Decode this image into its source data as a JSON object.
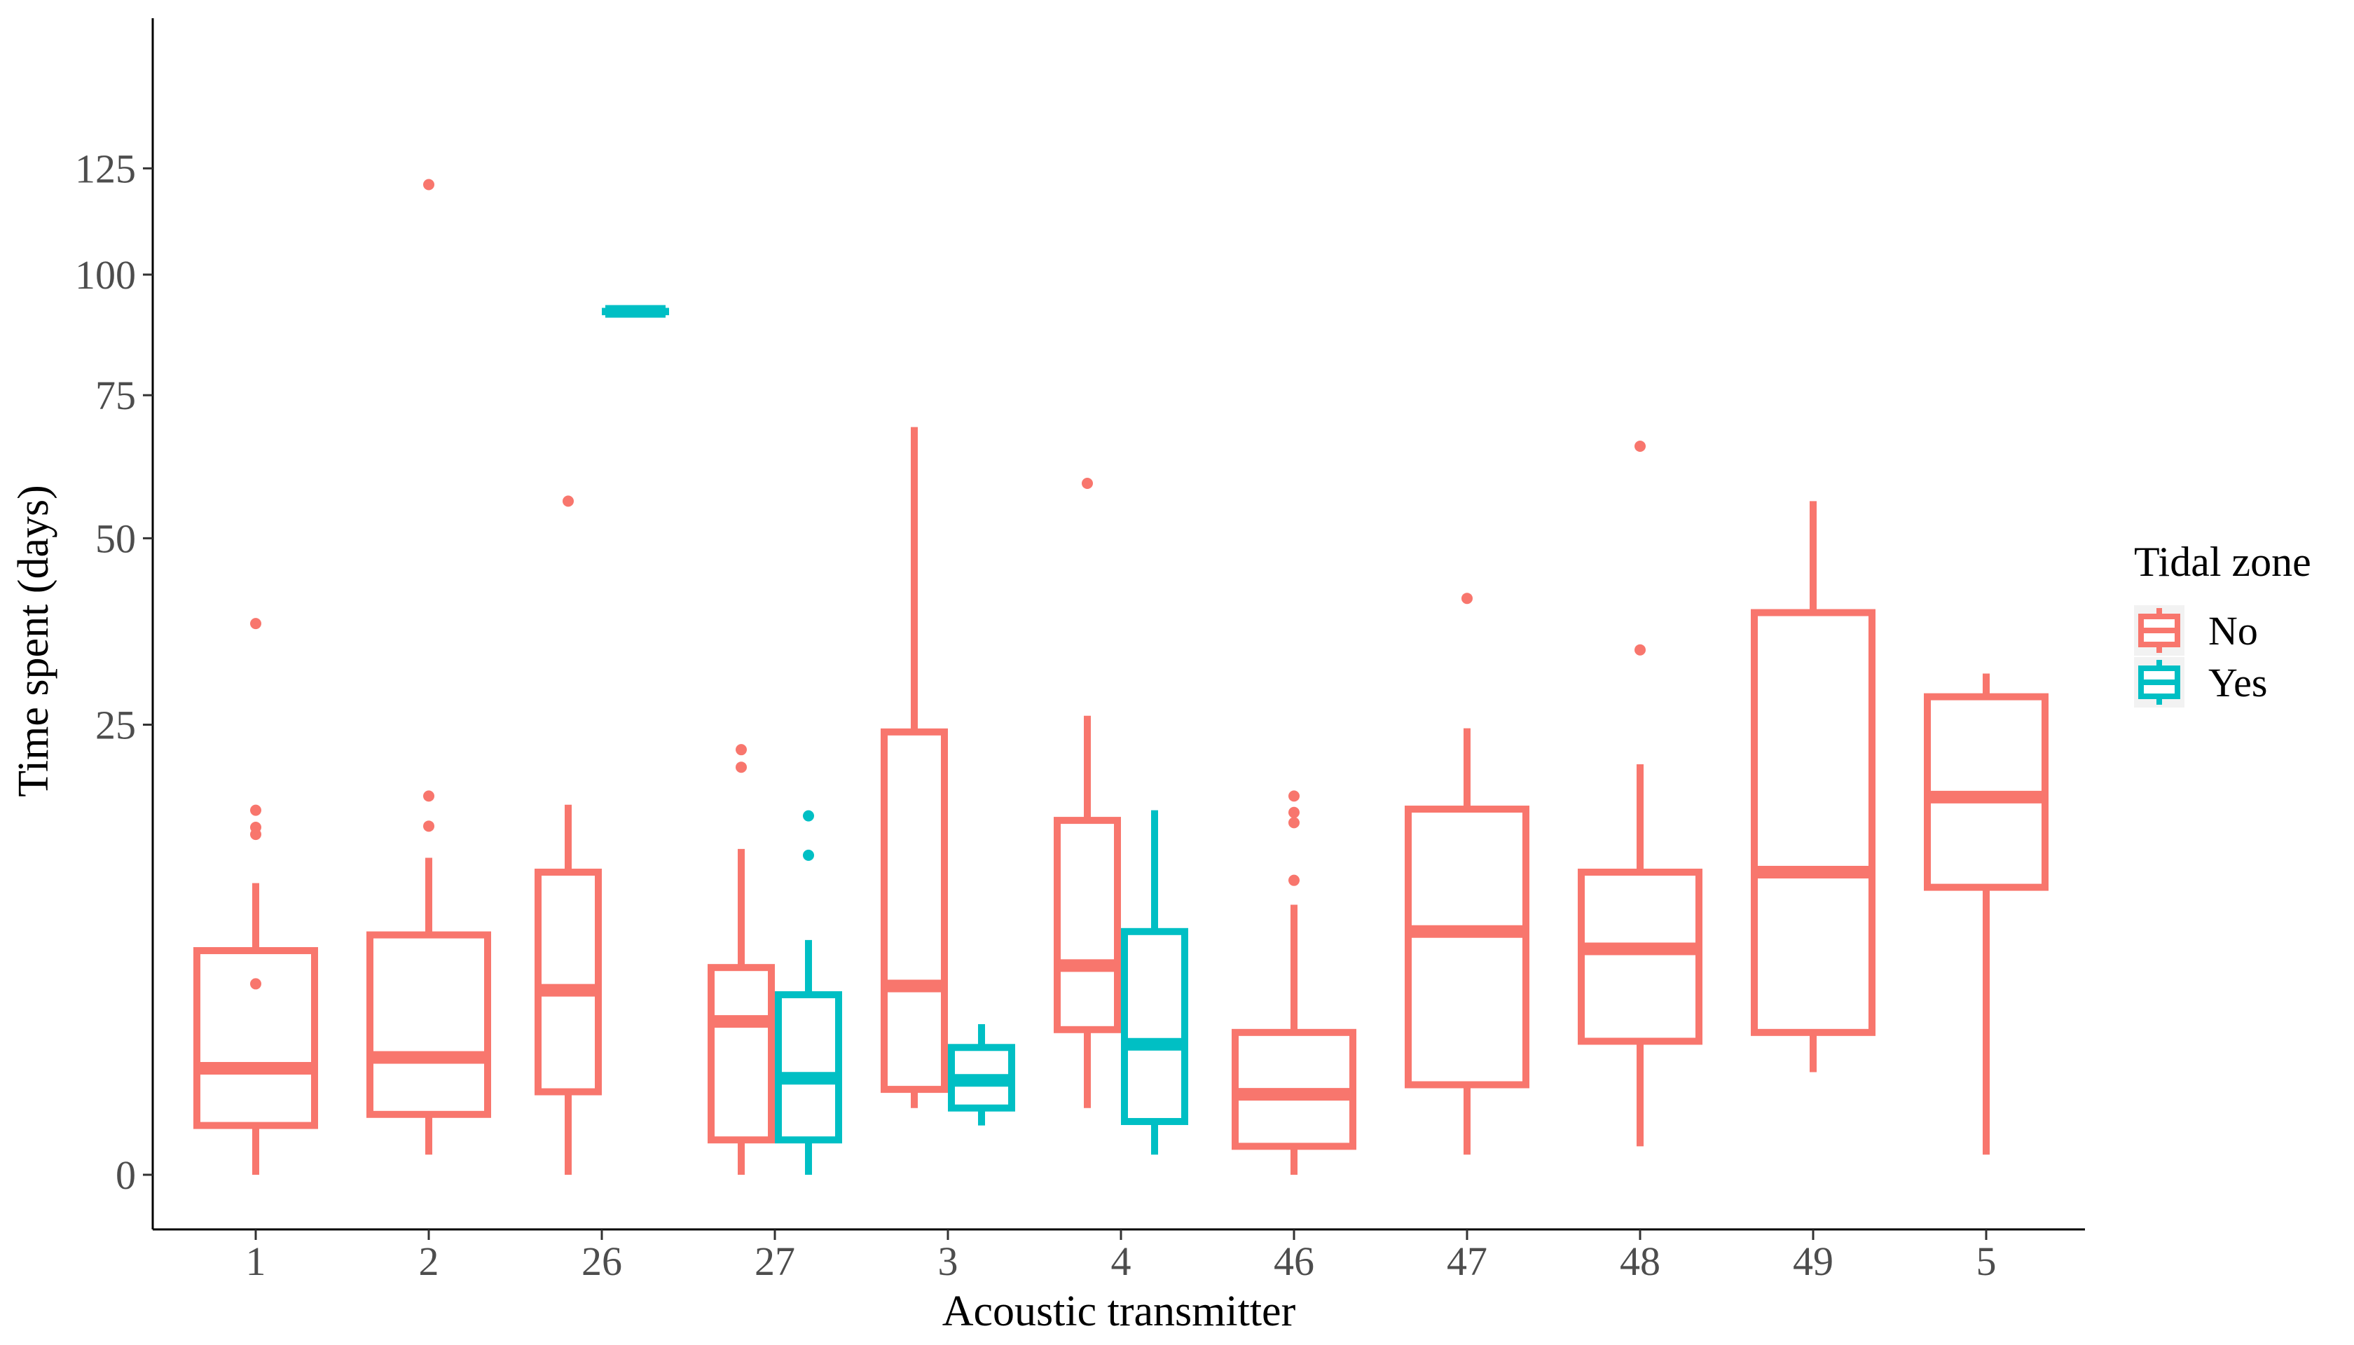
{
  "chart_data": {
    "type": "box",
    "xlabel": "Acoustic transmitter",
    "ylabel": "Time spent (days)",
    "y_scale": "sqrt",
    "ylim": [
      0,
      130
    ],
    "yticks": [
      0,
      25,
      50,
      75,
      100,
      125
    ],
    "categories": [
      "1",
      "2",
      "26",
      "27",
      "3",
      "4",
      "46",
      "47",
      "48",
      "49",
      "5"
    ],
    "legend": {
      "title": "Tidal zone",
      "placement": "right",
      "entries": [
        {
          "name": "No",
          "color": "#F8766D"
        },
        {
          "name": "Yes",
          "color": "#00BFC4"
        }
      ]
    },
    "series": [
      {
        "name": "No",
        "color": "#F8766D",
        "boxes": [
          {
            "category": "1",
            "min": 0,
            "q1": 0.3,
            "median": 1.4,
            "q3": 6.2,
            "max": 10.5,
            "outliers": [
              4.5,
              14.3,
              14.9,
              16.4,
              37.5
            ]
          },
          {
            "category": "2",
            "min": 0.05,
            "q1": 0.45,
            "median": 1.7,
            "q3": 7.1,
            "max": 12.4,
            "outliers": [
              15.0,
              17.7,
              121.0
            ]
          },
          {
            "category": "26",
            "min": 0,
            "q1": 0.85,
            "median": 4.2,
            "q3": 11.3,
            "max": 16.9,
            "outliers": [
              56.0
            ]
          },
          {
            "category": "27",
            "min": 0,
            "q1": 0.15,
            "median": 2.9,
            "q3": 5.3,
            "max": 13.1,
            "outliers": [
              20.5,
              22.3
            ]
          },
          {
            "category": "3",
            "min": 0.55,
            "q1": 0.9,
            "median": 4.4,
            "q3": 24.2,
            "max": 69.0,
            "outliers": []
          },
          {
            "category": "4",
            "min": 0.55,
            "q1": 2.6,
            "median": 5.4,
            "q3": 15.5,
            "max": 26.0,
            "outliers": [
              59.0
            ]
          },
          {
            "category": "46",
            "min": 0,
            "q1": 0.1,
            "median": 0.8,
            "q3": 2.5,
            "max": 9.0,
            "outliers": [
              10.7,
              15.3,
              16.2,
              17.7
            ]
          },
          {
            "category": "47",
            "min": 0.05,
            "q1": 1.0,
            "median": 7.3,
            "q3": 16.5,
            "max": 24.6,
            "outliers": [
              41.0
            ]
          },
          {
            "category": "48",
            "min": 0.1,
            "q1": 2.2,
            "median": 6.3,
            "q3": 11.3,
            "max": 20.8,
            "outliers": [
              34.0,
              65.5
            ]
          },
          {
            "category": "49",
            "min": 1.3,
            "q1": 2.5,
            "median": 11.3,
            "q3": 39.0,
            "max": 56.0,
            "outliers": []
          },
          {
            "category": "5",
            "min": 0.05,
            "q1": 10.2,
            "median": 17.6,
            "q3": 28.2,
            "max": 31.0,
            "outliers": []
          }
        ]
      },
      {
        "name": "Yes",
        "color": "#00BFC4",
        "boxes": [
          {
            "category": "26",
            "min": 92.0,
            "q1": 92.0,
            "median": 92.0,
            "q3": 92.0,
            "max": 92.0,
            "outliers": []
          },
          {
            "category": "27",
            "min": 0,
            "q1": 0.15,
            "median": 1.15,
            "q3": 4.0,
            "max": 6.8,
            "outliers": [
              12.6,
              15.9
            ]
          },
          {
            "category": "3",
            "min": 0.3,
            "q1": 0.55,
            "median": 1.1,
            "q3": 2.0,
            "max": 2.8,
            "outliers": []
          },
          {
            "category": "4",
            "min": 0.05,
            "q1": 0.35,
            "median": 2.1,
            "q3": 7.3,
            "max": 16.4,
            "outliers": []
          }
        ]
      }
    ]
  }
}
